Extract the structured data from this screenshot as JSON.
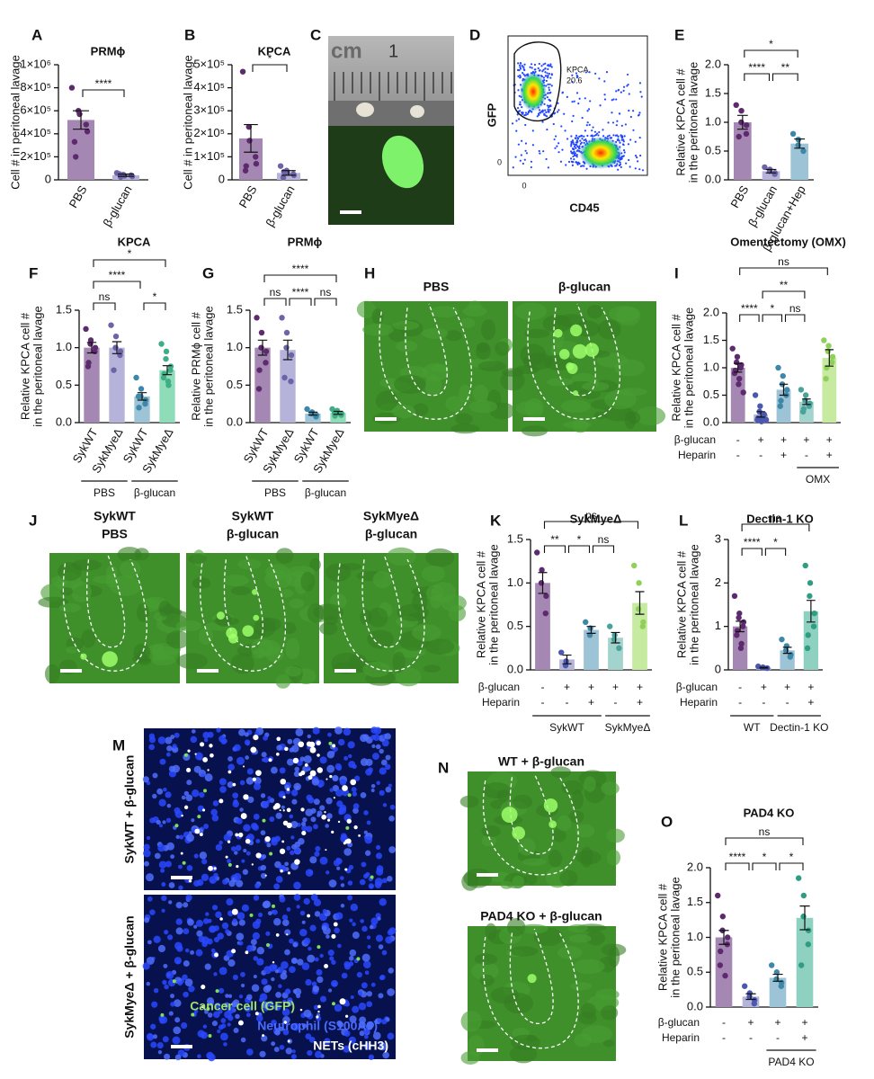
{
  "chart_data": [
    {
      "type": "bar",
      "panel": "A",
      "title": "PRMϕ",
      "ylabel": [
        "Cell # in peritoneal lavage"
      ],
      "categories": [
        "PBS",
        "β-glucan"
      ],
      "values": [
        520000,
        40000
      ],
      "errors": [
        80000,
        10000
      ],
      "points": [
        [
          800000,
          600000,
          570000,
          480000,
          420000,
          330000,
          200000
        ],
        [
          60000,
          45000,
          35000,
          40000,
          30000,
          50000,
          25000
        ]
      ],
      "colors": [
        "#a587b3",
        "#b5b3da"
      ],
      "point_colors": [
        "#5e2a6e",
        "#6d63a8"
      ],
      "ylim": [
        0,
        1000000
      ],
      "yticks": [
        0,
        {
          "value": 200000,
          "label": "2×10⁵"
        },
        {
          "value": 400000,
          "label": "4×10⁵"
        },
        {
          "value": 600000,
          "label": "6×10⁵"
        },
        {
          "value": 800000,
          "label": "8×10⁵"
        },
        {
          "value": 1000000,
          "label": "1×10⁶"
        }
      ],
      "comparisons": [
        {
          "between": [
            0,
            1
          ],
          "label": "****"
        }
      ]
    },
    {
      "type": "bar",
      "panel": "B",
      "title": "KPCA",
      "ylabel": [
        "Cell # in peritoneal lavage"
      ],
      "categories": [
        "PBS",
        "β-glucan"
      ],
      "values": [
        180000,
        30000
      ],
      "errors": [
        60000,
        10000
      ],
      "points": [
        [
          470000,
          230000,
          170000,
          100000,
          70000,
          40000,
          60000
        ],
        [
          60000,
          40000,
          30000,
          25000,
          20000,
          10000,
          35000
        ]
      ],
      "colors": [
        "#a587b3",
        "#b5b3da"
      ],
      "point_colors": [
        "#5e2a6e",
        "#6d63a8"
      ],
      "ylim": [
        0,
        500000
      ],
      "yticks": [
        0,
        {
          "value": 100000,
          "label": "1×10⁵"
        },
        {
          "value": 200000,
          "label": "2×10⁵"
        },
        {
          "value": 300000,
          "label": "3×10⁵"
        },
        {
          "value": 400000,
          "label": "4×10⁵"
        },
        {
          "value": 500000,
          "label": "5×10⁵"
        }
      ],
      "comparisons": [
        {
          "between": [
            0,
            1
          ],
          "label": "*"
        }
      ]
    },
    {
      "type": "bar",
      "panel": "E",
      "ylabel": [
        "Relative KPCA cell #",
        "in the peritoneal lavage"
      ],
      "categories": [
        "PBS",
        "β-glucan",
        "β-glucan+Hep"
      ],
      "values": [
        1.0,
        0.15,
        0.63
      ],
      "errors": [
        0.12,
        0.03,
        0.08
      ],
      "points": [
        [
          1.3,
          1.2,
          1.0,
          0.95,
          0.8,
          0.75
        ],
        [
          0.22,
          0.18,
          0.15,
          0.12,
          0.1
        ],
        [
          0.8,
          0.7,
          0.6,
          0.5
        ]
      ],
      "colors": [
        "#a587b3",
        "#b5b3da",
        "#9cc3d6"
      ],
      "point_colors": [
        "#5e2a6e",
        "#6d63a8",
        "#3f87a8"
      ],
      "ylim": [
        0,
        2
      ],
      "yticks": [
        {
          "value": 0,
          "label": "0.0"
        },
        0.5,
        {
          "value": 1,
          "label": "1.0"
        },
        1.5,
        {
          "value": 2,
          "label": "2.0"
        }
      ],
      "comparisons": [
        {
          "between": [
            0,
            1
          ],
          "label": "****"
        },
        {
          "between": [
            1,
            2
          ],
          "label": "**"
        },
        {
          "between": [
            0,
            2
          ],
          "label": "*"
        }
      ]
    },
    {
      "type": "bar",
      "panel": "F",
      "title": "KPCA",
      "ylabel": [
        "Relative KPCA cell #",
        "in the peritoneal lavage"
      ],
      "categories": [
        "SykWT",
        "SykMyeΔ",
        "SykWT",
        "SykMyeΔ"
      ],
      "values": [
        1.0,
        1.0,
        0.35,
        0.7
      ],
      "errors": [
        0.07,
        0.08,
        0.05,
        0.06
      ],
      "points": [
        [
          1.25,
          1.1,
          1.05,
          1.0,
          0.95,
          0.8,
          0.75
        ],
        [
          1.3,
          1.15,
          1.0,
          0.95,
          0.9,
          0.7
        ],
        [
          0.6,
          0.45,
          0.35,
          0.3,
          0.25,
          0.2,
          0.35
        ],
        [
          1.05,
          0.95,
          0.85,
          0.75,
          0.7,
          0.65,
          0.6,
          0.5,
          0.55
        ]
      ],
      "colors": [
        "#a587b3",
        "#b5b3da",
        "#9cc3d6",
        "#8fdcb9"
      ],
      "point_colors": [
        "#5e2a6e",
        "#6d63a8",
        "#3f87a8",
        "#3fae86"
      ],
      "ylim": [
        0,
        1.5
      ],
      "yticks": [
        {
          "value": 0,
          "label": "0.0"
        },
        0.5,
        {
          "value": 1,
          "label": "1.0"
        },
        1.5
      ],
      "comparisons": [
        {
          "between": [
            0,
            1
          ],
          "label": "ns"
        },
        {
          "between": [
            2,
            3
          ],
          "label": "*"
        },
        {
          "between": [
            0,
            2
          ],
          "label": "****"
        },
        {
          "between": [
            0,
            3
          ],
          "label": "*"
        }
      ],
      "groups": [
        {
          "label": "PBS",
          "span": [
            0,
            1
          ]
        },
        {
          "label": "β-glucan",
          "span": [
            2,
            3
          ]
        }
      ]
    },
    {
      "type": "bar",
      "panel": "G",
      "title": "PRMϕ",
      "ylabel": [
        "Relative PRMϕ cell #",
        "in the peritoneal lavage"
      ],
      "categories": [
        "SykWT",
        "SykMyeΔ",
        "SykWT",
        "SykMyeΔ"
      ],
      "values": [
        1.0,
        0.97,
        0.12,
        0.13
      ],
      "errors": [
        0.1,
        0.13,
        0.02,
        0.02
      ],
      "points": [
        [
          1.4,
          1.2,
          1.0,
          0.95,
          0.8,
          0.7,
          0.45
        ],
        [
          1.4,
          1.2,
          1.0,
          0.9,
          0.55,
          0.6
        ],
        [
          0.18,
          0.14,
          0.12,
          0.1,
          0.08
        ],
        [
          0.18,
          0.16,
          0.14,
          0.12,
          0.1,
          0.09,
          0.13
        ]
      ],
      "colors": [
        "#a587b3",
        "#b5b3da",
        "#9cc3d6",
        "#8fdcb9"
      ],
      "point_colors": [
        "#5e2a6e",
        "#6d63a8",
        "#3f87a8",
        "#3fae86"
      ],
      "ylim": [
        0,
        1.5
      ],
      "yticks": [
        {
          "value": 0,
          "label": "0.0"
        },
        0.5,
        {
          "value": 1,
          "label": "1.0"
        },
        1.5
      ],
      "comparisons": [
        {
          "between": [
            0,
            1
          ],
          "label": "ns"
        },
        {
          "between": [
            1,
            2
          ],
          "label": "****"
        },
        {
          "between": [
            2,
            3
          ],
          "label": "ns"
        },
        {
          "between": [
            0,
            3
          ],
          "label": "****"
        }
      ],
      "groups": [
        {
          "label": "PBS",
          "span": [
            0,
            1
          ]
        },
        {
          "label": "β-glucan",
          "span": [
            2,
            3
          ]
        }
      ]
    },
    {
      "type": "bar",
      "panel": "I",
      "title": "Omentectomy (OMX)",
      "ylabel": [
        "Relative KPCA cell #",
        "in the peritoneal lavage"
      ],
      "categories": [
        null,
        null,
        null,
        null,
        null
      ],
      "values": [
        1.0,
        0.15,
        0.6,
        0.38,
        1.18
      ],
      "errors": [
        0.08,
        0.05,
        0.1,
        0.05,
        0.15
      ],
      "points": [
        [
          1.35,
          1.2,
          1.1,
          1.05,
          1.0,
          0.95,
          0.9,
          0.8,
          0.7,
          0.55
        ],
        [
          0.5,
          0.3,
          0.2,
          0.15,
          0.1,
          0.08,
          0.05,
          0.05,
          0.02,
          0.05
        ],
        [
          1.0,
          0.85,
          0.7,
          0.6,
          0.5,
          0.4,
          0.3
        ],
        [
          0.6,
          0.5,
          0.4,
          0.35,
          0.3,
          0.25,
          0.2
        ],
        [
          1.5,
          1.4,
          1.3,
          1.2,
          1.1,
          1.0,
          0.8
        ]
      ],
      "colors": [
        "#a587b3",
        "#b5b3da",
        "#9cc3d6",
        "#a3d3cd",
        "#c6eba0"
      ],
      "point_colors": [
        "#5e2a6e",
        "#4a58b0",
        "#3f87a8",
        "#49a39b",
        "#8fd05a"
      ],
      "ylim": [
        0,
        2
      ],
      "yticks": [
        {
          "value": 0,
          "label": "0.0"
        },
        0.5,
        {
          "value": 1,
          "label": "1.0"
        },
        1.5,
        {
          "value": 2,
          "label": "2.0"
        }
      ],
      "comparisons": [
        {
          "between": [
            0,
            1
          ],
          "label": "****"
        },
        {
          "between": [
            1,
            2
          ],
          "label": "*"
        },
        {
          "between": [
            2,
            3
          ],
          "label": "ns"
        },
        {
          "between": [
            1,
            3
          ],
          "label": "**"
        },
        {
          "between": [
            0,
            4
          ],
          "label": "ns"
        }
      ],
      "conditions": [
        {
          "name": "β-glucan",
          "signs": [
            "-",
            "+",
            "+",
            "+",
            "+"
          ]
        },
        {
          "name": "Heparin",
          "signs": [
            "-",
            "-",
            "+",
            "-",
            "+"
          ]
        }
      ],
      "groups": [
        {
          "label": "OMX",
          "span": [
            3,
            4
          ]
        }
      ]
    },
    {
      "type": "bar",
      "panel": "K",
      "title": "SykMyeΔ",
      "ylabel": [
        "Relative KPCA cell #",
        "in the peritoneal lavage"
      ],
      "categories": [
        null,
        null,
        null,
        null,
        null
      ],
      "values": [
        1.0,
        0.12,
        0.46,
        0.37,
        0.77
      ],
      "errors": [
        0.12,
        0.05,
        0.04,
        0.06,
        0.13
      ],
      "points": [
        [
          1.35,
          1.15,
          1.0,
          0.85,
          0.65
        ],
        [
          0.2,
          0.1,
          0.05
        ],
        [
          0.55,
          0.48,
          0.4
        ],
        [
          0.5,
          0.4,
          0.35,
          0.25
        ],
        [
          1.2,
          1.0,
          0.7,
          0.55,
          0.5
        ]
      ],
      "colors": [
        "#a587b3",
        "#b5b3da",
        "#9cc3d6",
        "#a3d3cd",
        "#c6eba0"
      ],
      "point_colors": [
        "#5e2a6e",
        "#4a58b0",
        "#3f87a8",
        "#49a39b",
        "#8fd05a"
      ],
      "ylim": [
        0,
        1.5
      ],
      "yticks": [
        {
          "value": 0,
          "label": "0.0"
        },
        0.5,
        {
          "value": 1,
          "label": "1.0"
        },
        1.5
      ],
      "comparisons": [
        {
          "between": [
            0,
            1
          ],
          "label": "**"
        },
        {
          "between": [
            1,
            2
          ],
          "label": "*"
        },
        {
          "between": [
            2,
            3
          ],
          "label": "ns"
        },
        {
          "between": [
            0,
            4
          ],
          "label": "ns"
        }
      ],
      "conditions": [
        {
          "name": "β-glucan",
          "signs": [
            "-",
            "+",
            "+",
            "+",
            "+"
          ]
        },
        {
          "name": "Heparin",
          "signs": [
            "-",
            "-",
            "+",
            "-",
            "+"
          ]
        }
      ],
      "groups": [
        {
          "label": "SykWT",
          "span": [
            0,
            2
          ]
        },
        {
          "label": "SykMyeΔ",
          "span": [
            3,
            4
          ]
        }
      ]
    },
    {
      "type": "bar",
      "panel": "L",
      "title": "Dectin-1 KO",
      "ylabel": [
        "Relative KPCA cell #",
        "in the peritoneal lavage"
      ],
      "categories": [
        null,
        null,
        null,
        null
      ],
      "values": [
        1.0,
        0.05,
        0.45,
        1.35
      ],
      "errors": [
        0.12,
        0.01,
        0.07,
        0.25
      ],
      "points": [
        [
          1.7,
          1.3,
          1.2,
          1.1,
          1.0,
          0.9,
          0.8,
          0.6,
          0.5
        ],
        [
          0.08,
          0.06,
          0.05,
          0.04
        ],
        [
          0.7,
          0.55,
          0.45,
          0.35,
          0.3
        ],
        [
          2.4,
          2.0,
          1.7,
          1.3,
          1.0,
          0.8,
          0.5
        ]
      ],
      "colors": [
        "#a587b3",
        "#b5b3da",
        "#9cc3d6",
        "#8fd1c0"
      ],
      "point_colors": [
        "#5e2a6e",
        "#4a58b0",
        "#3f87a8",
        "#2f9c84"
      ],
      "ylim": [
        0,
        3
      ],
      "yticks": [
        0,
        1,
        2,
        3
      ],
      "comparisons": [
        {
          "between": [
            0,
            1
          ],
          "label": "****"
        },
        {
          "between": [
            1,
            2
          ],
          "label": "*"
        },
        {
          "between": [
            0,
            3
          ],
          "label": "ns"
        }
      ],
      "conditions": [
        {
          "name": "β-glucan",
          "signs": [
            "-",
            "+",
            "+",
            "+"
          ]
        },
        {
          "name": "Heparin",
          "signs": [
            "-",
            "-",
            "-",
            "+"
          ]
        }
      ],
      "groups": [
        {
          "label": "WT",
          "span": [
            0,
            1
          ]
        },
        {
          "label": "Dectin-1 KO",
          "span": [
            2,
            3
          ]
        }
      ]
    },
    {
      "type": "bar",
      "panel": "O",
      "title": "PAD4 KO",
      "ylabel": [
        "Relative KPCA cell #",
        "in the peritoneal lavage"
      ],
      "categories": [
        null,
        null,
        null,
        null
      ],
      "values": [
        1.0,
        0.15,
        0.42,
        1.28
      ],
      "errors": [
        0.1,
        0.04,
        0.05,
        0.17
      ],
      "points": [
        [
          1.6,
          1.3,
          1.1,
          1.0,
          0.9,
          0.8,
          0.6,
          0.45
        ],
        [
          0.3,
          0.2,
          0.15,
          0.1,
          0.05
        ],
        [
          0.6,
          0.5,
          0.4,
          0.35,
          0.3
        ],
        [
          1.85,
          1.6,
          1.3,
          1.1,
          0.9,
          0.6
        ]
      ],
      "colors": [
        "#a587b3",
        "#b5b3da",
        "#9cc3d6",
        "#8fd1c0"
      ],
      "point_colors": [
        "#5e2a6e",
        "#4a58b0",
        "#3f87a8",
        "#2f9c84"
      ],
      "ylim": [
        0,
        2
      ],
      "yticks": [
        {
          "value": 0,
          "label": "0.0"
        },
        0.5,
        {
          "value": 1,
          "label": "1.0"
        },
        1.5,
        {
          "value": 2,
          "label": "2.0"
        }
      ],
      "comparisons": [
        {
          "between": [
            0,
            1
          ],
          "label": "****"
        },
        {
          "between": [
            1,
            2
          ],
          "label": "*"
        },
        {
          "between": [
            2,
            3
          ],
          "label": "*"
        },
        {
          "between": [
            0,
            3
          ],
          "label": "ns"
        }
      ],
      "conditions": [
        {
          "name": "β-glucan",
          "signs": [
            "-",
            "+",
            "+",
            "+"
          ]
        },
        {
          "name": "Heparin",
          "signs": [
            "-",
            "-",
            "-",
            "+"
          ]
        }
      ],
      "groups": [
        {
          "label": "PAD4 KO",
          "span": [
            2,
            3
          ]
        }
      ]
    }
  ],
  "images": [
    {
      "panel": "C",
      "texts": [
        "cm",
        "1"
      ]
    },
    {
      "panel": "D",
      "xlabel": "CD45",
      "ylabel": "GFP",
      "gate_label": "KPCA",
      "gate_value": 20.6,
      "xtick": "0",
      "ytick": "0"
    },
    {
      "panel": "H",
      "titles": [
        "PBS",
        "β-glucan"
      ]
    },
    {
      "panel": "J",
      "titles": [
        [
          "SykWT",
          "PBS"
        ],
        [
          "SykWT",
          "β-glucan"
        ],
        [
          "SykMyeΔ",
          "β-glucan"
        ]
      ]
    },
    {
      "panel": "M",
      "titles": [
        "SykWT + β-glucan",
        "SykMyeΔ + β-glucan"
      ],
      "legend": [
        "Cancer cell (GFP)",
        "Neutrophil (S100A9)",
        "NETs (cHH3)"
      ]
    },
    {
      "panel": "N",
      "titles": [
        "WT + β-glucan",
        "PAD4 KO + β-glucan"
      ]
    }
  ]
}
